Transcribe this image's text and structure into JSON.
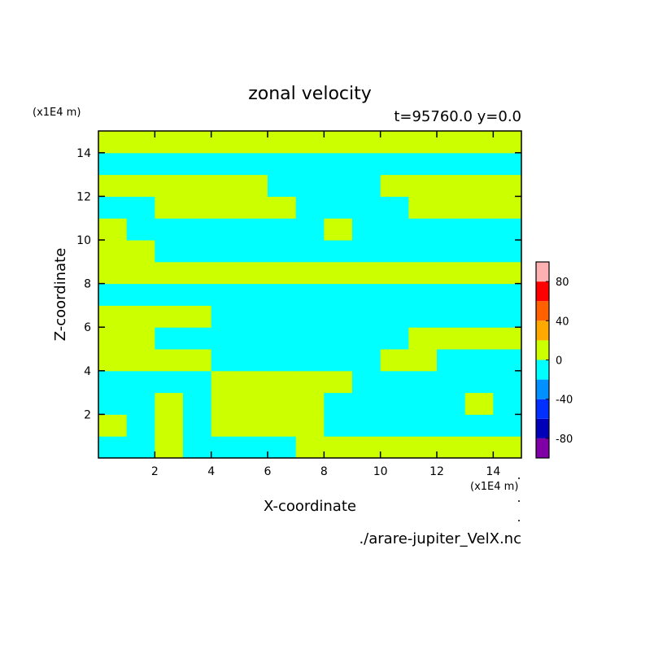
{
  "chart_data": {
    "type": "contour",
    "title": "zonal velocity",
    "subtitle": "t=95760.0 y=0.0",
    "x_label": "X-coordinate",
    "y_label": "Z-coordinate",
    "x_unit": "(x1E4 m)",
    "y_unit": "(x1E4 m)",
    "source": "./arare-jupiter_VelX.nc",
    "xlim": [
      0,
      15
    ],
    "ylim": [
      0,
      15
    ],
    "xticks": [
      2,
      4,
      6,
      8,
      10,
      12,
      14
    ],
    "yticks": [
      2,
      4,
      6,
      8,
      10,
      12,
      14
    ],
    "x": [
      0.5,
      1.5,
      2.5,
      3.5,
      4.5,
      5.5,
      6.5,
      7.5,
      8.5,
      9.5,
      10.5,
      11.5,
      12.5,
      13.5,
      14.5
    ],
    "y": [
      0.5,
      1.5,
      2.5,
      3.5,
      4.5,
      5.5,
      6.5,
      7.5,
      8.5,
      9.5,
      10.5,
      11.5,
      12.5,
      13.5,
      14.5
    ],
    "z": [
      [
        -10,
        -10,
        10,
        -10,
        -10,
        -10,
        -10,
        10,
        10,
        10,
        10,
        10,
        10,
        10,
        10
      ],
      [
        10,
        -10,
        10,
        -10,
        10,
        10,
        10,
        10,
        -10,
        -10,
        -10,
        -10,
        -10,
        -10,
        -10
      ],
      [
        -10,
        -10,
        10,
        -10,
        10,
        10,
        10,
        10,
        -10,
        -10,
        -10,
        -10,
        -10,
        10,
        -10
      ],
      [
        -10,
        -10,
        -10,
        -10,
        10,
        10,
        10,
        10,
        10,
        -10,
        -10,
        -10,
        -10,
        -10,
        -10
      ],
      [
        10,
        10,
        10,
        10,
        -10,
        -10,
        -10,
        -10,
        -10,
        -10,
        10,
        10,
        -10,
        -10,
        -10
      ],
      [
        10,
        10,
        -10,
        -10,
        -10,
        -10,
        -10,
        -10,
        -10,
        -10,
        -10,
        10,
        10,
        10,
        10
      ],
      [
        10,
        10,
        10,
        10,
        -10,
        -10,
        -10,
        -10,
        -10,
        -10,
        -10,
        -10,
        -10,
        -10,
        -10
      ],
      [
        -10,
        -10,
        -10,
        -10,
        -10,
        -10,
        -10,
        -10,
        -10,
        -10,
        -10,
        -10,
        -10,
        -10,
        -10
      ],
      [
        10,
        10,
        10,
        10,
        10,
        10,
        10,
        10,
        10,
        10,
        10,
        10,
        10,
        10,
        10
      ],
      [
        10,
        10,
        -10,
        -10,
        -10,
        -10,
        -10,
        -10,
        -10,
        -10,
        -10,
        -10,
        -10,
        -10,
        -10
      ],
      [
        10,
        -10,
        -10,
        -10,
        -10,
        -10,
        -10,
        -10,
        10,
        -10,
        -10,
        -10,
        -10,
        -10,
        -10
      ],
      [
        -10,
        -10,
        10,
        10,
        10,
        10,
        10,
        -10,
        -10,
        -10,
        -10,
        10,
        10,
        10,
        10
      ],
      [
        10,
        10,
        10,
        10,
        10,
        10,
        -10,
        -10,
        -10,
        -10,
        10,
        10,
        10,
        10,
        10
      ],
      [
        -10,
        -10,
        -10,
        -10,
        -10,
        -10,
        -10,
        -10,
        -10,
        -10,
        -10,
        -10,
        -10,
        -10,
        -10
      ],
      [
        10,
        10,
        10,
        10,
        10,
        10,
        10,
        10,
        10,
        10,
        10,
        10,
        10,
        10,
        10
      ]
    ],
    "levels": [
      -100,
      -80,
      -60,
      -40,
      -20,
      0,
      20,
      40,
      60,
      80,
      100
    ],
    "colors": [
      "#8000a8",
      "#0000b8",
      "#0030ff",
      "#0090ff",
      "#00ffff",
      "#ccff00",
      "#ffa800",
      "#ff6000",
      "#ff0000",
      "#ffb0b0"
    ],
    "colorbar_ticks": [
      -80,
      -40,
      0,
      40,
      80
    ]
  }
}
